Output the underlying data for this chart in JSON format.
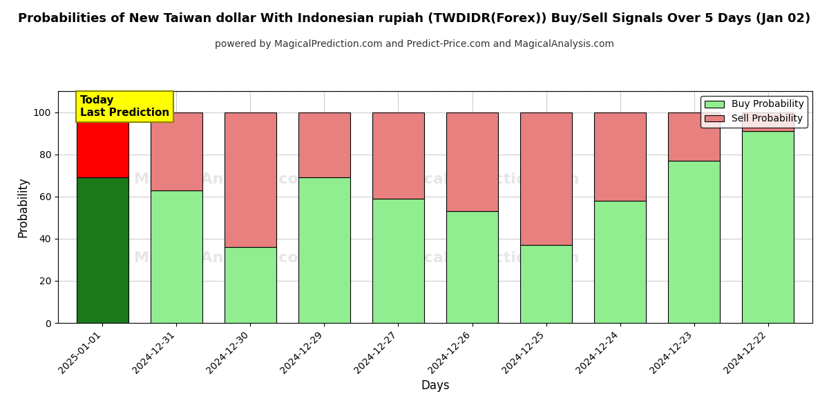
{
  "title": "Probabilities of New Taiwan dollar With Indonesian rupiah (TWDIDR(Forex)) Buy/Sell Signals Over 5 Days (Jan 02)",
  "subtitle": "powered by MagicalPrediction.com and Predict-Price.com and MagicalAnalysis.com",
  "xlabel": "Days",
  "ylabel": "Probability",
  "categories": [
    "2025-01-01",
    "2024-12-31",
    "2024-12-30",
    "2024-12-29",
    "2024-12-27",
    "2024-12-26",
    "2024-12-25",
    "2024-12-24",
    "2024-12-23",
    "2024-12-22"
  ],
  "buy_values": [
    69,
    63,
    36,
    69,
    59,
    53,
    37,
    58,
    77,
    91
  ],
  "sell_values": [
    31,
    37,
    64,
    31,
    41,
    47,
    63,
    42,
    23,
    9
  ],
  "today_bar_buy_color": "#1a7a1a",
  "today_bar_sell_color": "#ff0000",
  "normal_bar_buy_color": "#90EE90",
  "normal_bar_sell_color": "#E88080",
  "bar_edge_color": "#000000",
  "ylim": [
    0,
    110
  ],
  "yticks": [
    0,
    20,
    40,
    60,
    80,
    100
  ],
  "dashed_line_y": 110,
  "legend_buy_label": "Buy Probability",
  "legend_sell_label": "Sell Probability",
  "annotation_text": "Today\nLast Prediction",
  "annotation_bg": "#ffff00",
  "annotation_border": "#888800",
  "background_color": "#ffffff",
  "grid_color": "#cccccc"
}
